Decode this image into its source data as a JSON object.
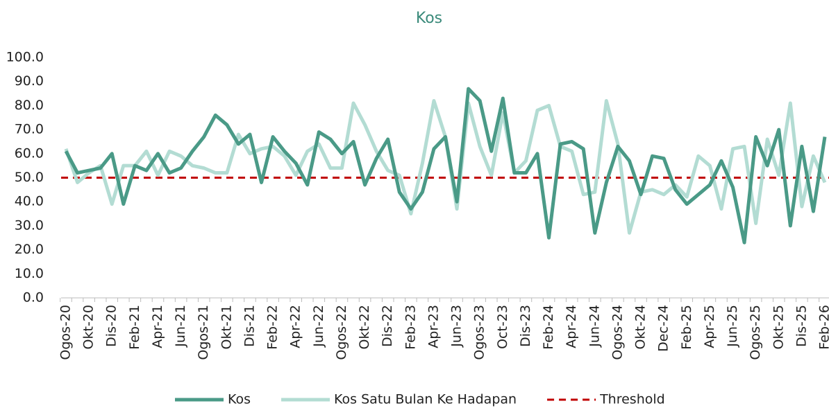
{
  "chart_data": {
    "type": "line",
    "title": "Kos",
    "categories": [
      "Ogos-20",
      null,
      "Okt-20",
      null,
      "Dis-20",
      null,
      "Feb-21",
      null,
      "Apr-21",
      null,
      "Jun-21",
      null,
      "Ogos-21",
      null,
      "Okt-21",
      null,
      "Dis-21",
      null,
      "Feb-22",
      null,
      "Apr-22",
      null,
      "Jun-22",
      null,
      "Ogos-22",
      null,
      "Okt-22",
      null,
      "Dis-22",
      null,
      "Feb-23",
      null,
      "Apr-23",
      null,
      "Jun-23",
      null,
      "Ogos-23",
      null,
      "Oct-23",
      null,
      "Dis-23",
      null,
      "Feb-24",
      null,
      "Apr-24",
      null,
      "Jun-24",
      null,
      "Ogos-24",
      null,
      "Okt-24",
      null,
      "Dec-24",
      null,
      "Feb-25",
      null,
      "Apr-25",
      null,
      "Jun-25",
      null,
      "Ogos-25",
      null,
      "Okt-25",
      null,
      "Dis-25",
      null,
      "Feb-26"
    ],
    "series": [
      {
        "name": "Kos",
        "color": "#4a9a87",
        "values": [
          61,
          52,
          53,
          54,
          60,
          39,
          55,
          53,
          60,
          52,
          54,
          61,
          67,
          76,
          72,
          64,
          68,
          48,
          67,
          61,
          56,
          47,
          69,
          66,
          60,
          65,
          47,
          58,
          66,
          44,
          37,
          44,
          62,
          67,
          40,
          87,
          82,
          61,
          83,
          52,
          52,
          60,
          25,
          64,
          65,
          62,
          27,
          48,
          63,
          57,
          43,
          59,
          58,
          45,
          39,
          43,
          47,
          57,
          46,
          23,
          67,
          55,
          70,
          30,
          63,
          36,
          67
        ]
      },
      {
        "name": "Kos Satu Bulan Ke Hadapan",
        "color": "#b3dcd3",
        "values": [
          62,
          48,
          52,
          55,
          39,
          55,
          55,
          61,
          51,
          61,
          59,
          55,
          54,
          52,
          52,
          68,
          60,
          62,
          63,
          59,
          51,
          61,
          64,
          54,
          54,
          81,
          72,
          61,
          53,
          51,
          35,
          56,
          82,
          67,
          37,
          81,
          63,
          51,
          77,
          52,
          57,
          78,
          80,
          63,
          61,
          43,
          44,
          82,
          64,
          27,
          44,
          45,
          43,
          47,
          42,
          59,
          55,
          37,
          62,
          63,
          31,
          66,
          51,
          81,
          38,
          59,
          48
        ]
      }
    ],
    "threshold": {
      "name": "Threshold",
      "value": 50,
      "color": "#c00000"
    },
    "ylim": [
      0,
      100
    ],
    "yticks": [
      {
        "value": 0,
        "label": "0.0"
      },
      {
        "value": 10,
        "label": "10.0"
      },
      {
        "value": 20,
        "label": "20.0"
      },
      {
        "value": 30,
        "label": "30.0"
      },
      {
        "value": 40,
        "label": "40.0"
      },
      {
        "value": 50,
        "label": "50.0"
      },
      {
        "value": 60,
        "label": "60.0"
      },
      {
        "value": 70,
        "label": "70.0"
      },
      {
        "value": 80,
        "label": "80.0"
      },
      {
        "value": 90,
        "label": "90.0"
      },
      {
        "value": 100,
        "label": "100.0"
      }
    ],
    "grid": false,
    "legend": "bottom"
  }
}
